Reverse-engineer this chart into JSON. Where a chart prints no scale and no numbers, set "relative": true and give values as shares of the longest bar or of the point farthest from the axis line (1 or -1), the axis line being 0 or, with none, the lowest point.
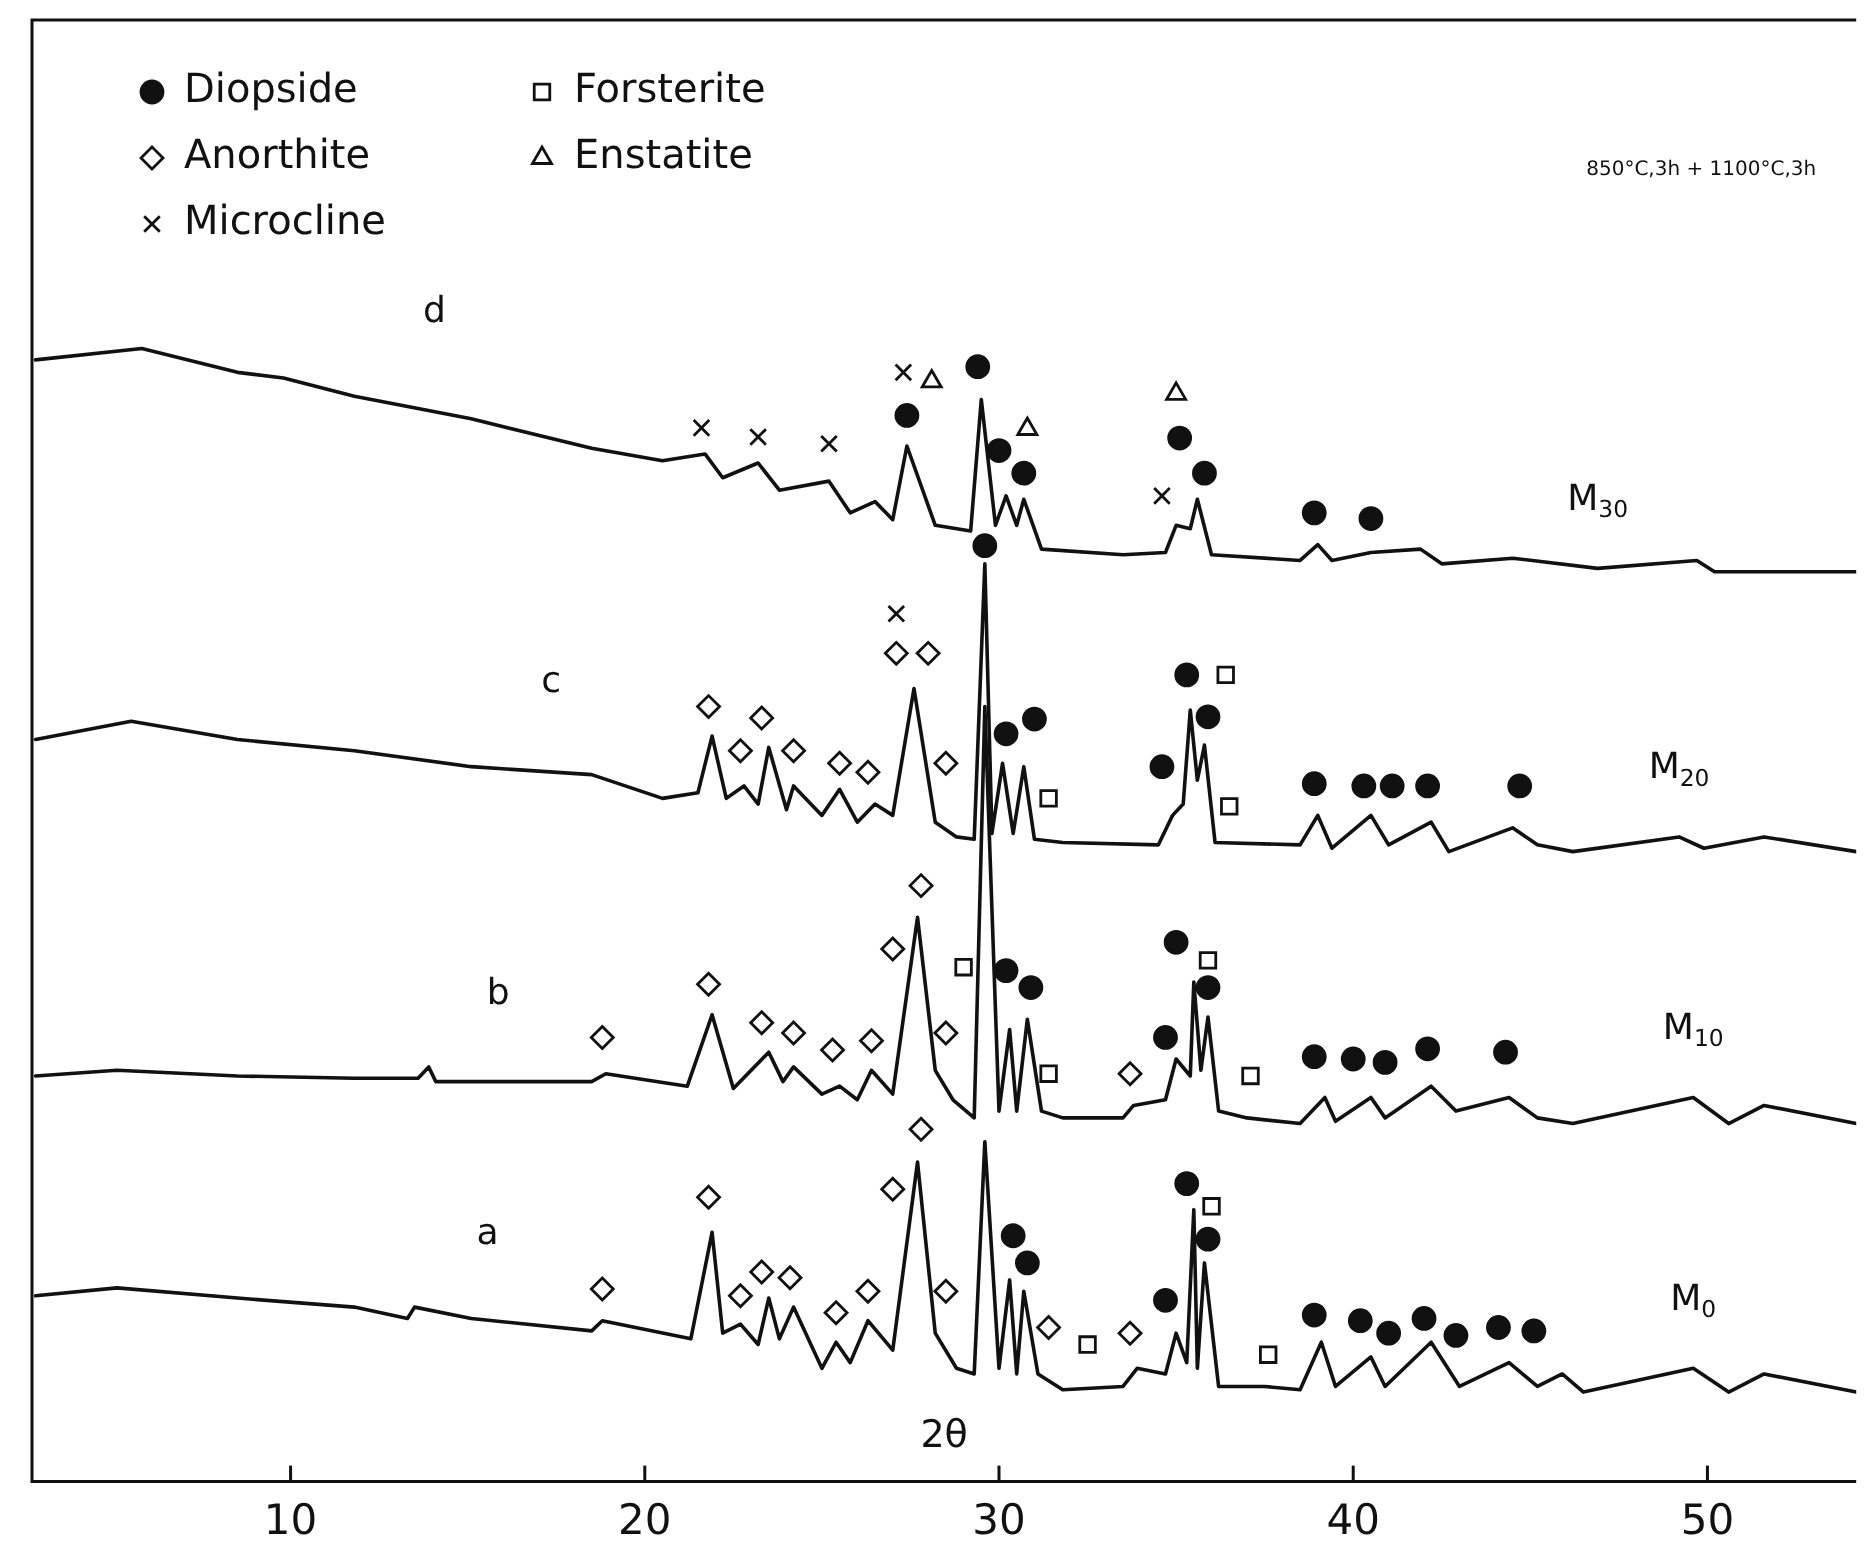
{
  "chart_data": {
    "type": "line",
    "relative": true,
    "xlabel": "2θ",
    "subtitle": "850°C,3h + 1100°C,3h",
    "marker": "none",
    "legend": "top left",
    "xlim": [
      2.7,
      54.2
    ],
    "xticks": [
      10,
      20,
      30,
      40,
      50
    ],
    "series": [
      {
        "name": "M$_{30}$",
        "color": "#111111",
        "x": [
          2.8,
          5.8,
          8.5,
          9.8,
          11.8,
          15.1,
          18.5,
          20.5,
          21.7,
          22.2,
          23.2,
          23.8,
          25.2,
          25.8,
          26.5,
          27.0,
          27.4,
          28.2,
          29.2,
          29.5,
          29.9,
          30.2,
          30.5,
          30.7,
          31.2,
          33.5,
          34.7,
          35.0,
          35.4,
          35.6,
          36.0,
          38.5,
          39.0,
          39.4,
          40.5,
          41.9,
          42.5,
          44.5,
          46.9,
          49.7,
          50.2,
          54.2
        ],
        "values": [
          0.99,
          1.0,
          0.979,
          0.974,
          0.958,
          0.938,
          0.912,
          0.901,
          0.907,
          0.886,
          0.899,
          0.875,
          0.883,
          0.855,
          0.865,
          0.849,
          0.914,
          0.844,
          0.839,
          0.955,
          0.844,
          0.87,
          0.844,
          0.867,
          0.823,
          0.818,
          0.82,
          0.844,
          0.841,
          0.867,
          0.818,
          0.813,
          0.827,
          0.813,
          0.82,
          0.823,
          0.81,
          0.815,
          0.806,
          0.813,
          0.803,
          0.803
        ]
      },
      {
        "name": "M$_{20}$",
        "color": "#111111",
        "x": [
          2.8,
          5.5,
          8.5,
          11.8,
          15.1,
          18.5,
          20.5,
          21.5,
          21.9,
          22.3,
          22.8,
          23.2,
          23.5,
          24.0,
          24.2,
          25.0,
          25.5,
          26.0,
          26.5,
          27.0,
          27.6,
          28.2,
          28.8,
          29.3,
          29.6,
          29.8,
          30.1,
          30.4,
          30.7,
          31.0,
          31.8,
          34.5,
          34.9,
          35.2,
          35.4,
          35.6,
          35.8,
          36.1,
          38.5,
          39.0,
          39.4,
          40.5,
          41.0,
          42.2,
          42.7,
          44.5,
          45.2,
          46.2,
          49.2,
          49.9,
          51.6,
          54.2
        ],
        "values": [
          0.655,
          0.671,
          0.655,
          0.645,
          0.631,
          0.624,
          0.603,
          0.608,
          0.658,
          0.603,
          0.614,
          0.598,
          0.648,
          0.593,
          0.614,
          0.588,
          0.611,
          0.582,
          0.598,
          0.588,
          0.7,
          0.582,
          0.569,
          0.567,
          0.81,
          0.572,
          0.634,
          0.572,
          0.631,
          0.567,
          0.564,
          0.562,
          0.588,
          0.598,
          0.681,
          0.619,
          0.65,
          0.564,
          0.562,
          0.588,
          0.559,
          0.588,
          0.562,
          0.582,
          0.556,
          0.577,
          0.562,
          0.556,
          0.569,
          0.559,
          0.569,
          0.556
        ]
      },
      {
        "name": "M$_{10}$",
        "color": "#111111",
        "x": [
          2.8,
          5.1,
          8.5,
          11.8,
          13.6,
          13.9,
          14.1,
          18.5,
          18.9,
          21.2,
          21.9,
          22.5,
          23.5,
          23.9,
          24.2,
          25.0,
          25.5,
          26.0,
          26.4,
          27.0,
          27.7,
          28.2,
          28.7,
          29.3,
          29.6,
          30.0,
          30.3,
          30.5,
          30.8,
          31.2,
          31.8,
          33.5,
          33.8,
          34.7,
          35.0,
          35.4,
          35.5,
          35.7,
          35.9,
          36.2,
          37.0,
          38.5,
          39.2,
          39.5,
          40.5,
          40.9,
          42.2,
          42.9,
          44.4,
          45.2,
          46.2,
          49.6,
          50.6,
          51.6,
          54.2
        ],
        "values": [
          0.358,
          0.363,
          0.358,
          0.356,
          0.356,
          0.366,
          0.353,
          0.353,
          0.36,
          0.349,
          0.412,
          0.347,
          0.379,
          0.353,
          0.366,
          0.342,
          0.349,
          0.337,
          0.363,
          0.342,
          0.498,
          0.363,
          0.337,
          0.321,
          0.684,
          0.327,
          0.399,
          0.327,
          0.408,
          0.327,
          0.321,
          0.321,
          0.332,
          0.337,
          0.373,
          0.358,
          0.441,
          0.363,
          0.41,
          0.327,
          0.321,
          0.316,
          0.339,
          0.318,
          0.339,
          0.321,
          0.349,
          0.327,
          0.339,
          0.321,
          0.316,
          0.339,
          0.316,
          0.332,
          0.316
        ]
      },
      {
        "name": "M$_{0}$",
        "color": "#111111",
        "x": [
          2.8,
          5.1,
          8.5,
          11.8,
          13.3,
          13.5,
          15.1,
          18.5,
          18.8,
          21.3,
          21.9,
          22.2,
          22.7,
          23.2,
          23.5,
          23.8,
          24.2,
          25.0,
          25.4,
          25.8,
          26.3,
          27.0,
          27.7,
          28.2,
          28.8,
          29.3,
          29.6,
          30.0,
          30.3,
          30.5,
          30.7,
          31.1,
          31.8,
          33.5,
          33.9,
          34.7,
          35.0,
          35.3,
          35.5,
          35.6,
          35.8,
          36.2,
          37.5,
          38.5,
          39.1,
          39.5,
          40.5,
          40.9,
          42.2,
          43.0,
          44.4,
          45.2,
          45.9,
          46.5,
          49.6,
          50.6,
          51.6,
          54.2
        ],
        "values": [
          0.164,
          0.171,
          0.162,
          0.154,
          0.144,
          0.154,
          0.144,
          0.133,
          0.142,
          0.126,
          0.22,
          0.131,
          0.139,
          0.121,
          0.162,
          0.126,
          0.154,
          0.1,
          0.123,
          0.105,
          0.142,
          0.116,
          0.282,
          0.131,
          0.1,
          0.095,
          0.3,
          0.1,
          0.178,
          0.095,
          0.168,
          0.095,
          0.081,
          0.084,
          0.1,
          0.095,
          0.131,
          0.105,
          0.24,
          0.1,
          0.193,
          0.084,
          0.084,
          0.081,
          0.123,
          0.084,
          0.11,
          0.084,
          0.123,
          0.084,
          0.105,
          0.084,
          0.095,
          0.079,
          0.1,
          0.079,
          0.095,
          0.079
        ]
      },
      {
        "type": "scatter",
        "name": "Diopside",
        "marker": "circle",
        "color": "#111111",
        "x": [
          27.4,
          29.4,
          30.0,
          30.7,
          35.1,
          35.8,
          38.9,
          40.5,
          29.6,
          35.3,
          30.2,
          31.0,
          34.6,
          35.9,
          38.9,
          40.3,
          41.1,
          42.1,
          44.7,
          30.2,
          30.9,
          35.0,
          35.9,
          34.7,
          38.9,
          40.0,
          40.9,
          42.1,
          44.3,
          30.4,
          30.8,
          35.3,
          35.9,
          34.7,
          38.9,
          40.2,
          41.0,
          42.0,
          42.9,
          44.1,
          45.1
        ],
        "values": [
          0.941,
          0.984,
          0.91,
          0.89,
          0.921,
          0.89,
          0.855,
          0.85,
          0.826,
          0.712,
          0.66,
          0.673,
          0.631,
          0.675,
          0.616,
          0.614,
          0.614,
          0.614,
          0.614,
          0.451,
          0.436,
          0.476,
          0.436,
          0.392,
          0.375,
          0.373,
          0.37,
          0.382,
          0.379,
          0.217,
          0.193,
          0.263,
          0.214,
          0.16,
          0.147,
          0.142,
          0.131,
          0.144,
          0.129,
          0.136,
          0.133
        ]
      },
      {
        "type": "scatter",
        "name": "Forsterite",
        "marker": "square",
        "color": "#111111",
        "x": [
          36.4,
          31.4,
          36.5,
          29.0,
          35.9,
          31.4,
          37.1,
          32.5,
          36.0,
          37.6
        ],
        "values": [
          0.712,
          0.603,
          0.596,
          0.454,
          0.46,
          0.36,
          0.358,
          0.121,
          0.243,
          0.112
        ]
      },
      {
        "type": "scatter",
        "name": "Anorthite",
        "marker": "diamond",
        "color": "#111111",
        "x": [
          27.1,
          28.0,
          21.8,
          23.3,
          22.7,
          24.2,
          25.5,
          26.3,
          28.5,
          27.8,
          27.0,
          21.8,
          18.8,
          23.3,
          24.2,
          25.3,
          26.4,
          28.5,
          33.7,
          27.8,
          21.8,
          27.0,
          18.8,
          22.7,
          23.3,
          24.1,
          25.4,
          26.3,
          28.5,
          31.4,
          33.7
        ],
        "values": [
          0.731,
          0.731,
          0.684,
          0.674,
          0.645,
          0.645,
          0.634,
          0.626,
          0.634,
          0.526,
          0.47,
          0.439,
          0.392,
          0.405,
          0.396,
          0.381,
          0.389,
          0.396,
          0.36,
          0.311,
          0.251,
          0.258,
          0.17,
          0.164,
          0.185,
          0.18,
          0.149,
          0.168,
          0.168,
          0.136,
          0.131
        ]
      },
      {
        "type": "scatter",
        "name": "Enstatite",
        "marker": "triangle",
        "color": "#111111",
        "x": [
          28.1,
          30.8,
          35.0
        ],
        "values": [
          0.971,
          0.929,
          0.96
        ]
      },
      {
        "type": "scatter",
        "name": "Microcline",
        "marker": "cross",
        "color": "#111111",
        "x": [
          21.6,
          23.2,
          25.2,
          27.3,
          34.6,
          27.1
        ],
        "values": [
          0.93,
          0.922,
          0.916,
          0.979,
          0.87,
          0.766
        ]
      }
    ],
    "annotations": [
      "d",
      "c",
      "b",
      "a"
    ]
  }
}
